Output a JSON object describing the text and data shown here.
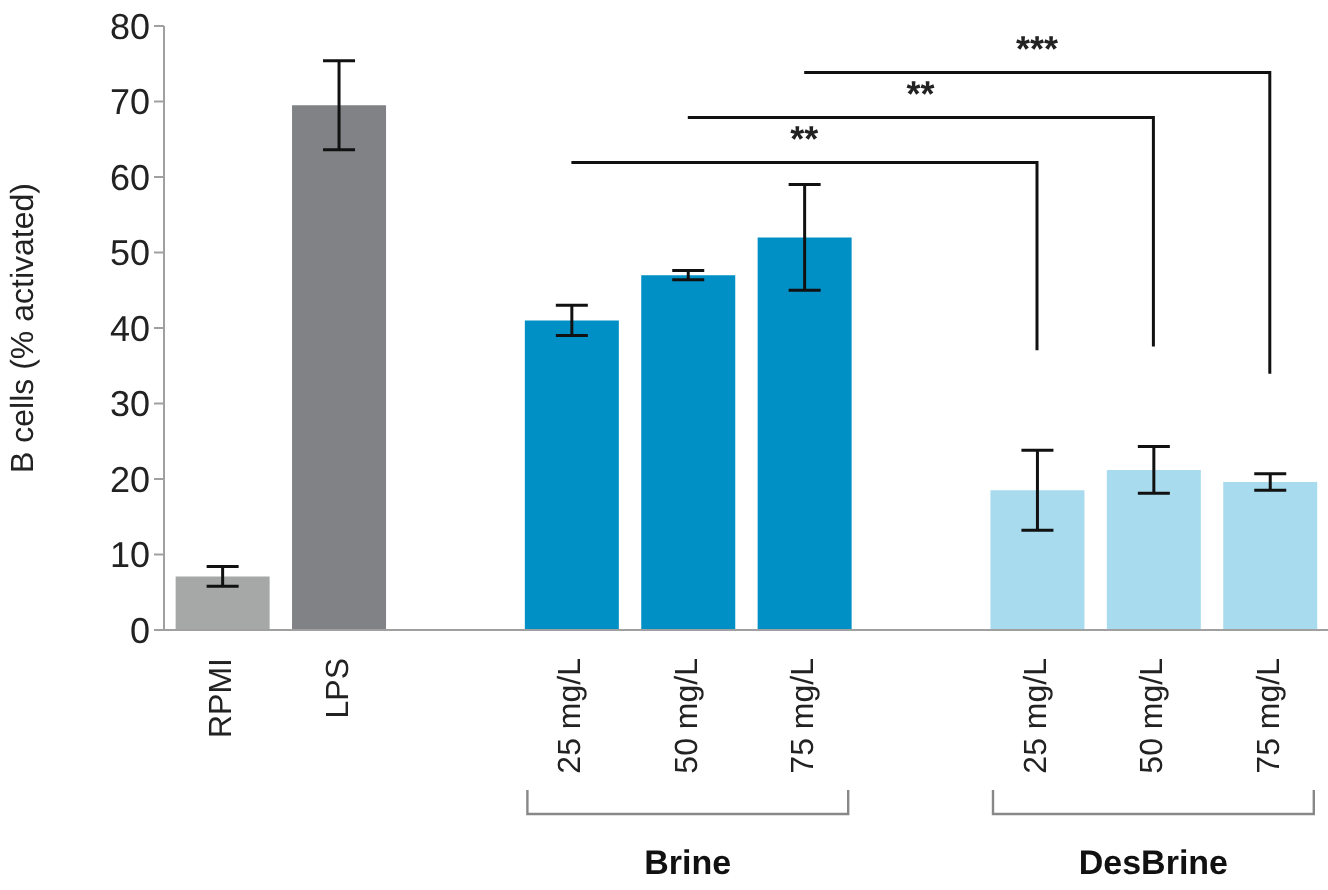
{
  "chart_data": {
    "type": "bar",
    "ylabel": "B cells (% activated)",
    "categories": [
      "RPMI",
      "LPS",
      null,
      "25 mg/L",
      "50 mg/L",
      "75 mg/L",
      null,
      "25 mg/L",
      "50 mg/L",
      "75 mg/L"
    ],
    "values": [
      7.1,
      69.5,
      null,
      41,
      47,
      52,
      null,
      18.5,
      21.2,
      19.6
    ],
    "errors": [
      1.3,
      5.9,
      null,
      2,
      0.6,
      7,
      null,
      5.3,
      3.1,
      1.1
    ],
    "colors": [
      "#a6a8a8",
      "#808285",
      null,
      "#0090c6",
      "#0090c6",
      "#0090c6",
      null,
      "#a9dbee",
      "#a9dbee",
      "#a9dbee"
    ],
    "ylim": [
      0,
      80
    ],
    "yticks": [
      0,
      10,
      20,
      30,
      40,
      50,
      60,
      70,
      80
    ],
    "annotations": [
      "**",
      "**",
      "***",
      "Brine",
      "DesBrine"
    ]
  }
}
